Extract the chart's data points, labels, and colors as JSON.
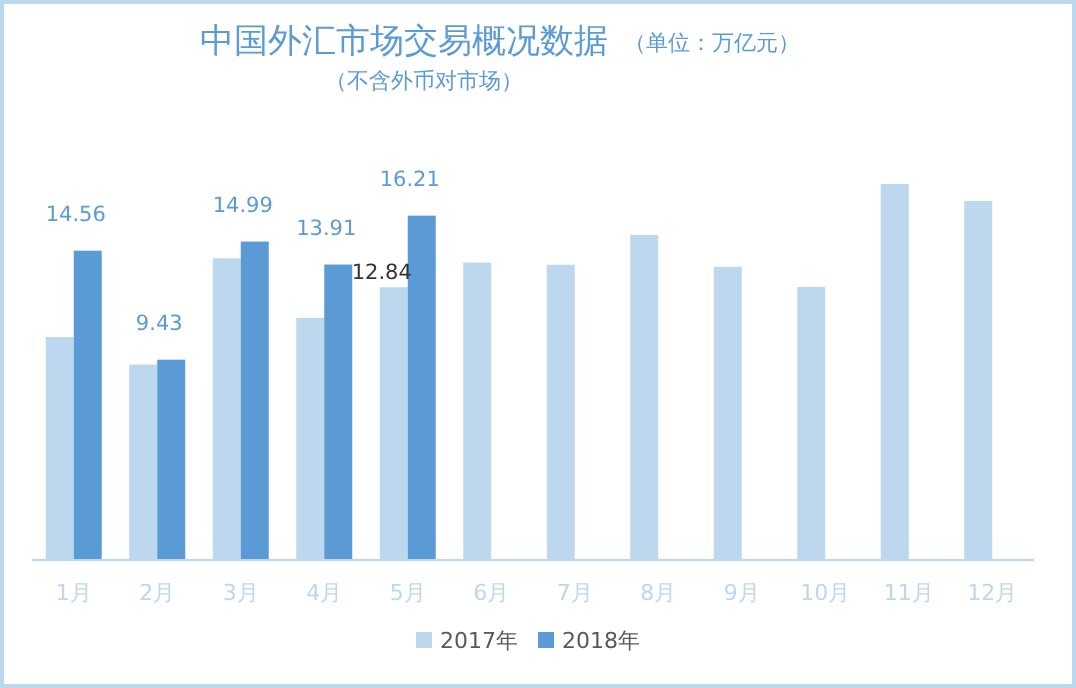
{
  "chart_data": {
    "type": "bar",
    "title": "中国外汇市场交易概况数据",
    "subtitle": "（不含外币对市场）",
    "annotations": [
      "（单位：万亿元）"
    ],
    "categories": [
      "1月",
      "2月",
      "3月",
      "4月",
      "5月",
      "6月",
      "7月",
      "8月",
      "9月",
      "10月",
      "11月",
      "12月"
    ],
    "series": [
      {
        "name": "2017年",
        "color": "#bdd7ee",
        "values": [
          10.5,
          9.2,
          14.2,
          11.4,
          12.84,
          14.0,
          13.9,
          15.3,
          13.8,
          12.85,
          17.7,
          16.9
        ],
        "value_labels": [
          null,
          null,
          null,
          null,
          "12.84",
          null,
          null,
          null,
          null,
          null,
          null,
          null
        ]
      },
      {
        "name": "2018年",
        "color": "#5b9bd5",
        "values": [
          14.56,
          9.43,
          14.99,
          13.91,
          16.21,
          null,
          null,
          null,
          null,
          null,
          null,
          null
        ],
        "value_labels": [
          "14.56",
          "9.43",
          "14.99",
          "13.91",
          "16.21",
          null,
          null,
          null,
          null,
          null,
          null,
          null
        ]
      }
    ],
    "legend": "bottom",
    "grid": false
  }
}
